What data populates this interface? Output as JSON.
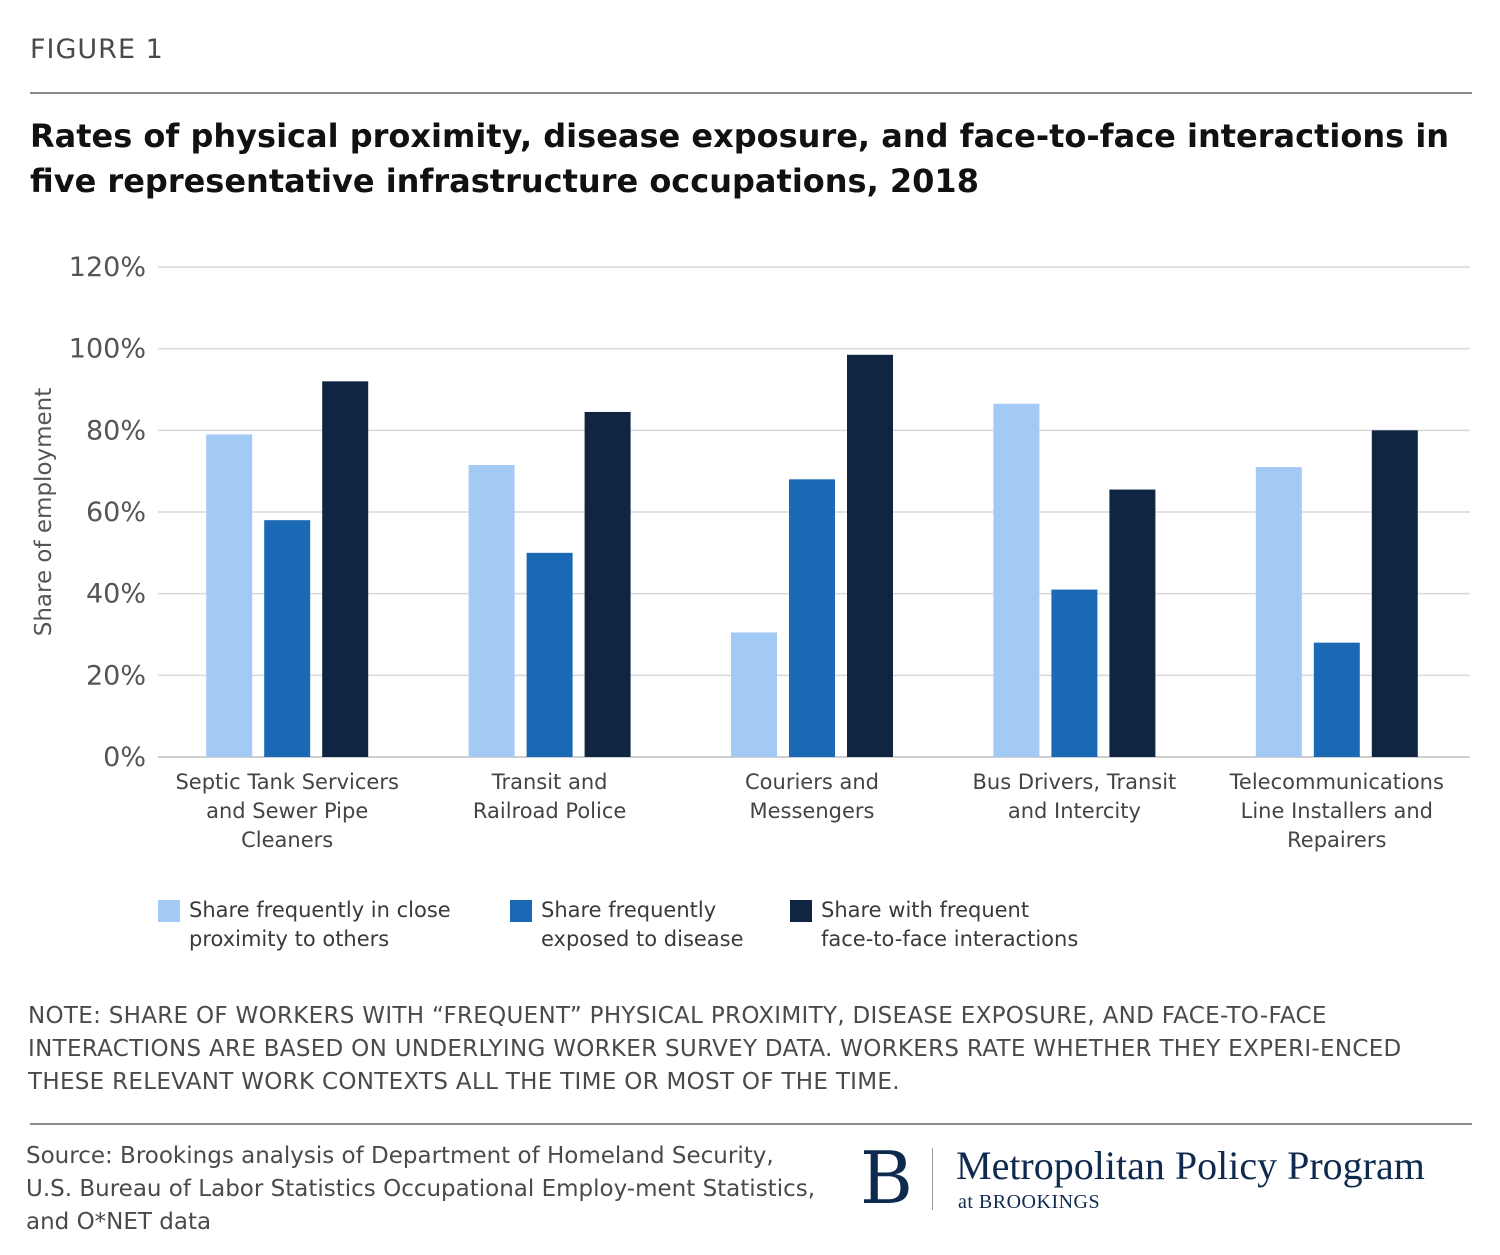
{
  "figure_label": "FIGURE 1",
  "title": "Rates of physical proximity, disease exposure, and face-to-face interactions in five representative infrastructure occupations, 2018",
  "chart_data": {
    "type": "bar",
    "ylabel": "Share of employment",
    "ylim": [
      0,
      120
    ],
    "yticks": [
      "0%",
      "20%",
      "40%",
      "60%",
      "80%",
      "100%",
      "120%"
    ],
    "grid": true,
    "legend_position": "bottom",
    "categories": [
      [
        "Septic Tank Servicers",
        "and Sewer Pipe",
        "Cleaners"
      ],
      [
        "Transit and",
        "Railroad Police"
      ],
      [
        "Couriers and",
        "Messengers"
      ],
      [
        "Bus Drivers, Transit",
        "and Intercity"
      ],
      [
        "Telecommunications",
        "Line Installers and",
        "Repairers"
      ]
    ],
    "series": [
      {
        "name": [
          "Share frequently in close",
          "proximity to others"
        ],
        "color": "#a3c9f5",
        "values": [
          79,
          71.5,
          30.5,
          86.5,
          71
        ]
      },
      {
        "name": [
          "Share frequently",
          "exposed to disease"
        ],
        "color": "#1b69b5",
        "values": [
          58,
          50,
          68,
          41,
          28
        ]
      },
      {
        "name": [
          "Share with frequent",
          "face-to-face interactions"
        ],
        "color": "#0f2542",
        "values": [
          92,
          84.5,
          98.5,
          65.5,
          80
        ]
      }
    ]
  },
  "note": "NOTE: SHARE OF WORKERS WITH “FREQUENT” PHYSICAL PROXIMITY, DISEASE EXPOSURE, AND FACE-TO-FACE INTERACTIONS ARE BASED ON UNDERLYING WORKER SURVEY DATA. WORKERS RATE WHETHER THEY EXPERI-ENCED THESE RELEVANT WORK CONTEXTS ALL THE TIME OR MOST OF THE TIME.",
  "source": "Source: Brookings analysis of Department of Homeland Security, U.S. Bureau of Labor Statistics Occupational Employ-ment Statistics, and O*NET data",
  "logo": {
    "mark": "B",
    "program": "Metropolitan Policy Program",
    "sub": "at BROOKINGS"
  }
}
